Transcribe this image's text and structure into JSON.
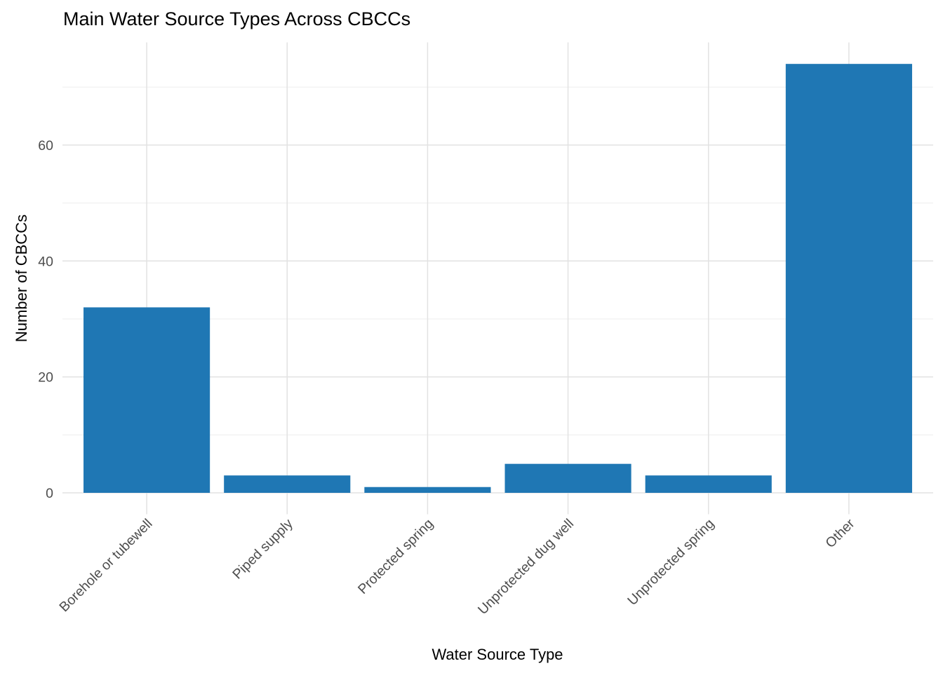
{
  "chart_data": {
    "type": "bar",
    "title": "Main Water Source Types Across CBCCs",
    "xlabel": "Water Source Type",
    "ylabel": "Number of CBCCs",
    "categories": [
      "Borehole or tubewell",
      "Piped supply",
      "Protected spring",
      "Unprotected dug well",
      "Unprotected spring",
      "Other"
    ],
    "values": [
      32,
      3,
      1,
      5,
      3,
      74
    ],
    "ylim": [
      0,
      74
    ],
    "y_ticks": [
      0,
      20,
      40,
      60
    ],
    "y_minor_ticks": [
      10,
      30,
      50,
      70
    ],
    "x_tick_angle": -45,
    "grid": "on",
    "legend": "none",
    "colors": {
      "bar_fill": "#1f77b4",
      "grid_major": "#e2e2e2",
      "grid_minor": "#ededed",
      "axis_text": "#4d4d4d",
      "title_text": "#000000",
      "background": "#ffffff"
    }
  }
}
